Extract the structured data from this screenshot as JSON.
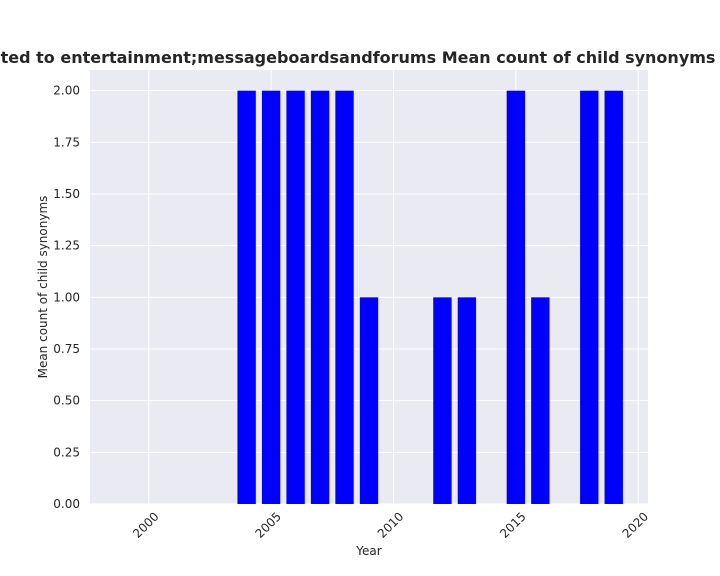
{
  "chart_data": {
    "type": "bar",
    "title": "are related to entertainment;messageboardsandforums Mean count of child synonyms in priva",
    "xlabel": "Year",
    "ylabel": "Mean count of child synonyms",
    "x": [
      2004,
      2005,
      2006,
      2007,
      2008,
      2009,
      2012,
      2013,
      2015,
      2016,
      2018,
      2019
    ],
    "values": [
      2,
      2,
      2,
      2,
      2,
      1,
      1,
      1,
      2,
      1,
      2,
      2
    ],
    "xlim": [
      1997.6,
      2020.4
    ],
    "ylim": [
      0,
      2.1
    ],
    "xticks": [
      "2000",
      "2005",
      "2010",
      "2015",
      "2020"
    ],
    "yticks": [
      "0.00",
      "0.25",
      "0.50",
      "0.75",
      "1.00",
      "1.25",
      "1.50",
      "1.75",
      "2.00"
    ],
    "bar_color": "#0000ff",
    "background": "#eaeaf2",
    "grid": true
  }
}
